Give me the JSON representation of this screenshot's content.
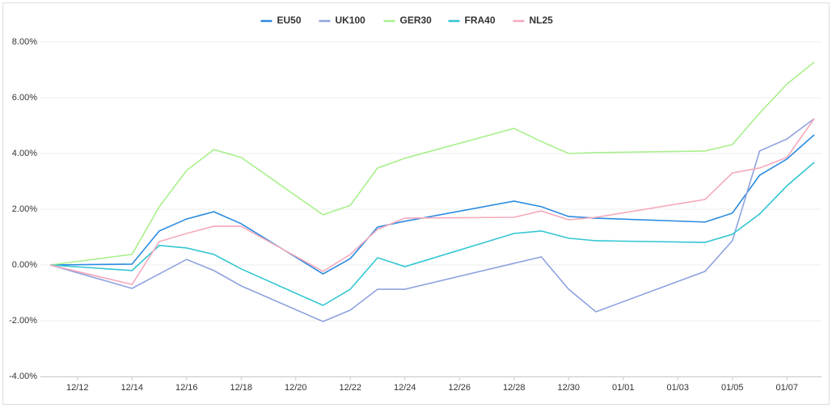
{
  "chart_data": {
    "type": "line",
    "x": [
      "12/11",
      "12/14",
      "12/15",
      "12/16",
      "12/17",
      "12/18",
      "12/21",
      "12/22",
      "12/23",
      "12/24",
      "12/28",
      "12/29",
      "12/30",
      "12/31",
      "01/04",
      "01/05",
      "01/06",
      "01/07",
      "01/08"
    ],
    "series": [
      {
        "name": "EU50",
        "color": "#2a8be0",
        "values": [
          0,
          0.03,
          1.22,
          1.65,
          1.91,
          1.48,
          -0.32,
          0.23,
          1.36,
          1.57,
          2.29,
          2.09,
          1.74,
          1.68,
          1.54,
          1.86,
          3.22,
          3.8,
          4.67
        ]
      },
      {
        "name": "UK100",
        "color": "#8fa2df",
        "values": [
          0,
          -0.84,
          -0.32,
          0.2,
          -0.2,
          -0.75,
          -2.03,
          -1.62,
          -0.87,
          -0.87,
          0.06,
          0.29,
          -0.87,
          -1.68,
          -0.23,
          0.87,
          4.09,
          4.52,
          5.25
        ]
      },
      {
        "name": "GER30",
        "color": "#a8f08c",
        "values": [
          0,
          0.38,
          2.09,
          3.39,
          4.14,
          3.86,
          1.8,
          2.14,
          3.48,
          3.83,
          4.9,
          4.43,
          4.0,
          4.03,
          4.09,
          4.32,
          5.45,
          6.49,
          7.28
        ]
      },
      {
        "name": "FRA40",
        "color": "#32c6d2",
        "values": [
          0,
          -0.2,
          0.7,
          0.61,
          0.38,
          -0.14,
          -1.45,
          -0.87,
          0.26,
          -0.06,
          1.13,
          1.22,
          0.96,
          0.87,
          0.81,
          1.1,
          1.83,
          2.84,
          3.68
        ]
      },
      {
        "name": "NL25",
        "color": "#f5a9ba",
        "values": [
          0,
          -0.7,
          0.84,
          1.13,
          1.39,
          1.39,
          -0.23,
          0.38,
          1.28,
          1.68,
          1.71,
          1.94,
          1.62,
          1.71,
          2.35,
          3.3,
          3.48,
          3.86,
          5.25
        ]
      }
    ],
    "xlim": [
      "12/11",
      "01/08"
    ],
    "xticks": [
      "12/12",
      "12/14",
      "12/16",
      "12/18",
      "12/20",
      "12/22",
      "12/24",
      "12/26",
      "12/28",
      "12/30",
      "01/01",
      "01/03",
      "01/05",
      "01/07"
    ],
    "ylim": [
      -4,
      8
    ],
    "yticks": [
      {
        "value": -4,
        "label": "-4.00%"
      },
      {
        "value": -2,
        "label": "-2.00%"
      },
      {
        "value": 0,
        "label": "0.00%"
      },
      {
        "value": 2,
        "label": "2.00%"
      },
      {
        "value": 4,
        "label": "4.00%"
      },
      {
        "value": 6,
        "label": "6.00%"
      },
      {
        "value": 8,
        "label": "8.00%"
      }
    ],
    "grid": true,
    "legend": "top"
  }
}
